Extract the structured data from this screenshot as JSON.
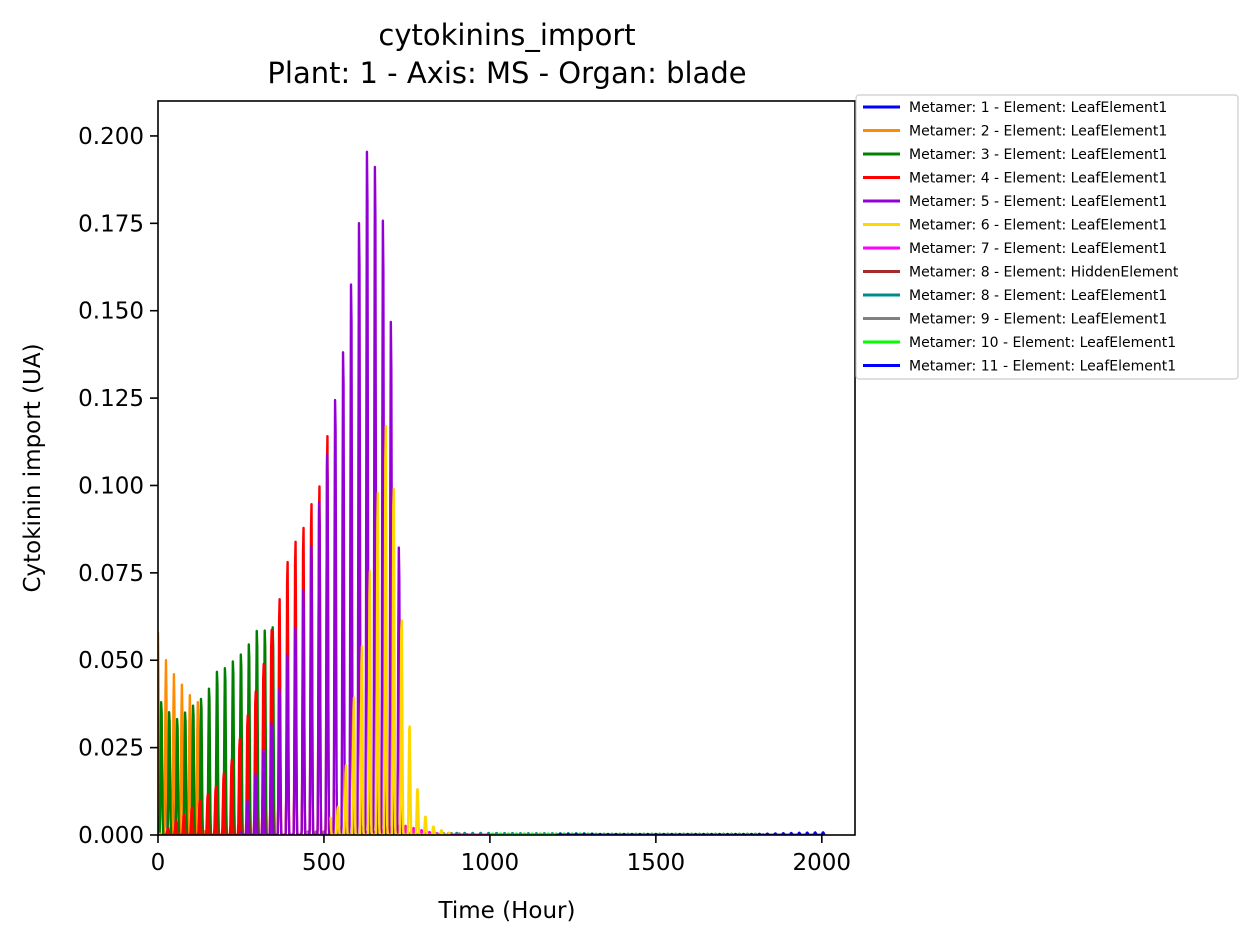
{
  "chart_data": {
    "type": "line",
    "title": "cytokinins_import",
    "subtitle": "Plant: 1 - Axis: MS - Organ: blade",
    "xlabel": "Time (Hour)",
    "ylabel": "Cytokinin import (UA)",
    "xlim": [
      0,
      2100
    ],
    "ylim": [
      0,
      0.21
    ],
    "xticks": [
      0,
      500,
      1000,
      1500,
      2000
    ],
    "yticks": [
      0.0,
      0.025,
      0.05,
      0.075,
      0.1,
      0.125,
      0.15,
      0.175,
      0.2
    ],
    "xtick_labels": [
      "0",
      "500",
      "1000",
      "1500",
      "2000"
    ],
    "ytick_labels": [
      "0.000",
      "0.025",
      "0.050",
      "0.075",
      "0.100",
      "0.125",
      "0.150",
      "0.175",
      "0.200"
    ],
    "grid": false,
    "legend_placement": "outside-upper-right",
    "series": [
      {
        "name": "Metamer: 1 - Element: LeafElement1",
        "color": "#0000ff",
        "t_start": 0,
        "t_end": 60,
        "peaks": [
          [
            0,
            0.043
          ],
          [
            24,
            0.038
          ],
          [
            48,
            0.033
          ]
        ]
      },
      {
        "name": "Metamer: 2 - Element: LeafElement1",
        "color": "#ff8c00",
        "t_start": 0,
        "t_end": 140,
        "peaks": [
          [
            0,
            0.058
          ],
          [
            24,
            0.05
          ],
          [
            48,
            0.046
          ],
          [
            72,
            0.043
          ],
          [
            96,
            0.04
          ],
          [
            120,
            0.038
          ]
        ]
      },
      {
        "name": "Metamer: 3 - Element: LeafElement1",
        "color": "#008000",
        "t_start": 5,
        "t_end": 360,
        "peaks": [
          [
            10,
            0.039
          ],
          [
            34,
            0.036
          ],
          [
            58,
            0.034
          ],
          [
            82,
            0.036
          ],
          [
            106,
            0.038
          ],
          [
            130,
            0.04
          ],
          [
            154,
            0.043
          ],
          [
            178,
            0.048
          ],
          [
            202,
            0.049
          ],
          [
            226,
            0.051
          ],
          [
            250,
            0.053
          ],
          [
            274,
            0.056
          ],
          [
            298,
            0.06
          ],
          [
            322,
            0.06
          ],
          [
            346,
            0.061
          ]
        ]
      },
      {
        "name": "Metamer: 4 - Element: LeafElement1",
        "color": "#ff0000",
        "t_start": 20,
        "t_end": 530,
        "peaks": [
          [
            30,
            0.002
          ],
          [
            54,
            0.004
          ],
          [
            78,
            0.006
          ],
          [
            102,
            0.008
          ],
          [
            126,
            0.01
          ],
          [
            150,
            0.012
          ],
          [
            174,
            0.014
          ],
          [
            198,
            0.018
          ],
          [
            222,
            0.022
          ],
          [
            246,
            0.028
          ],
          [
            270,
            0.035
          ],
          [
            294,
            0.042
          ],
          [
            318,
            0.05
          ],
          [
            342,
            0.06
          ],
          [
            366,
            0.069
          ],
          [
            390,
            0.08
          ],
          [
            414,
            0.086
          ],
          [
            438,
            0.09
          ],
          [
            462,
            0.097
          ],
          [
            486,
            0.102
          ],
          [
            510,
            0.117
          ],
          [
            522,
            0.119
          ]
        ]
      },
      {
        "name": "Metamer: 5 - Element: LeafElement1",
        "color": "#9400d3",
        "t_start": 250,
        "t_end": 740,
        "peaks": [
          [
            270,
            0.01
          ],
          [
            294,
            0.018
          ],
          [
            318,
            0.025
          ],
          [
            342,
            0.033
          ],
          [
            366,
            0.043
          ],
          [
            390,
            0.053
          ],
          [
            414,
            0.061
          ],
          [
            438,
            0.072
          ],
          [
            462,
            0.085
          ],
          [
            486,
            0.098
          ],
          [
            510,
            0.112
          ],
          [
            534,
            0.128
          ],
          [
            558,
            0.142
          ],
          [
            582,
            0.162
          ],
          [
            606,
            0.18
          ],
          [
            630,
            0.201
          ],
          [
            654,
            0.196
          ],
          [
            678,
            0.18
          ],
          [
            702,
            0.15
          ],
          [
            726,
            0.083
          ]
        ]
      },
      {
        "name": "Metamer: 6 - Element: LeafElement1",
        "color": "#ffd700",
        "t_start": 520,
        "t_end": 880,
        "peaks": [
          [
            542,
            0.008
          ],
          [
            566,
            0.02
          ],
          [
            590,
            0.04
          ],
          [
            614,
            0.055
          ],
          [
            638,
            0.077
          ],
          [
            662,
            0.1
          ],
          [
            686,
            0.12
          ],
          [
            700,
            0.122
          ],
          [
            718,
            0.087
          ],
          [
            740,
            0.055
          ],
          [
            764,
            0.025
          ],
          [
            788,
            0.01
          ],
          [
            812,
            0.004
          ],
          [
            836,
            0.002
          ]
        ]
      },
      {
        "name": "Metamer: 7 - Element: LeafElement1",
        "color": "#ff00ff",
        "t_start": 620,
        "t_end": 1000,
        "peaks": [
          [
            650,
            0.001
          ],
          [
            690,
            0.002
          ],
          [
            730,
            0.003
          ],
          [
            770,
            0.002
          ],
          [
            810,
            0.001
          ]
        ]
      },
      {
        "name": "Metamer: 8 - Element: HiddenElement",
        "color": "#a52a2a",
        "t_start": 480,
        "t_end": 800,
        "peaks": [
          [
            500,
            0.001
          ],
          [
            560,
            0.002
          ],
          [
            620,
            0.003
          ],
          [
            680,
            0.003
          ],
          [
            740,
            0.002
          ]
        ]
      },
      {
        "name": "Metamer: 8 - Element: LeafElement1",
        "color": "#008b8b",
        "t_start": 800,
        "t_end": 2000,
        "peaks": [
          [
            900,
            0.0006
          ],
          [
            1000,
            0.0006
          ],
          [
            1100,
            0.0005
          ],
          [
            1300,
            0.0005
          ]
        ]
      },
      {
        "name": "Metamer: 9 - Element: LeafElement1",
        "color": "#808080",
        "t_start": 450,
        "t_end": 1500,
        "peaks": [
          [
            500,
            0.001
          ],
          [
            600,
            0.002
          ],
          [
            700,
            0.001
          ],
          [
            900,
            0.0005
          ]
        ]
      },
      {
        "name": "Metamer: 10 - Element: LeafElement1",
        "color": "#00ff00",
        "t_start": 1000,
        "t_end": 2000,
        "peaks": [
          [
            1200,
            0.0004
          ],
          [
            1500,
            0.0004
          ],
          [
            1800,
            0.0004
          ]
        ]
      },
      {
        "name": "Metamer: 11 - Element: LeafElement1",
        "color": "#0000ff",
        "t_start": 1200,
        "t_end": 2010,
        "peaks": [
          [
            1500,
            0.0003
          ],
          [
            1800,
            0.0003
          ],
          [
            2000,
            0.0008
          ]
        ]
      }
    ]
  }
}
